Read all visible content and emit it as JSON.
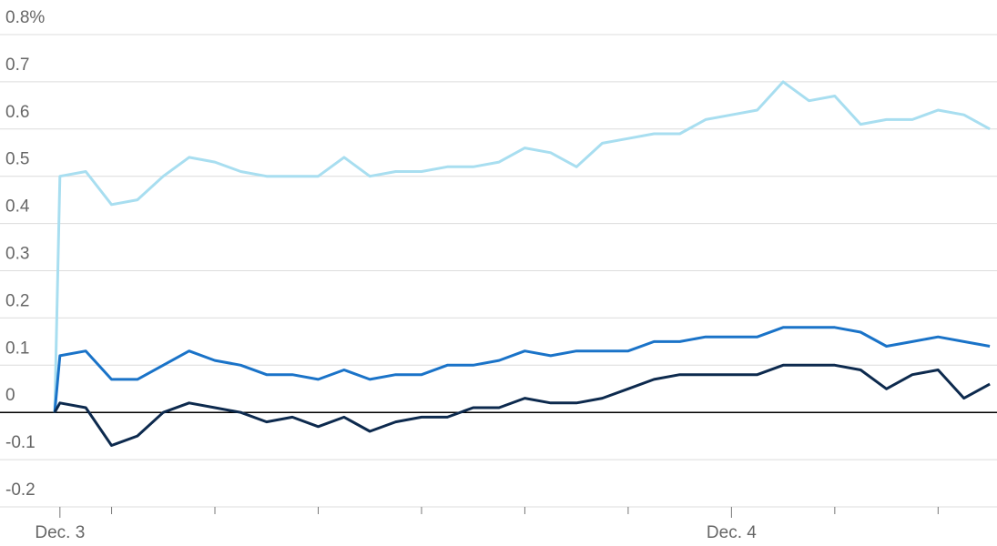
{
  "chart_data": {
    "type": "line",
    "x": [
      -0.05,
      0,
      0.25,
      0.5,
      0.75,
      1,
      1.25,
      1.5,
      1.75,
      2,
      2.25,
      2.5,
      2.75,
      3,
      3.25,
      3.5,
      3.75,
      4,
      4.25,
      4.5,
      4.75,
      5,
      5.25,
      5.5,
      5.75,
      6,
      6.25,
      6.5,
      6.75,
      7,
      7.25,
      7.5,
      7.75,
      8,
      8.25,
      8.5,
      8.75,
      9
    ],
    "series": [
      {
        "color": "#a8def0",
        "values": [
          0,
          0.5,
          0.51,
          0.44,
          0.45,
          0.5,
          0.54,
          0.53,
          0.51,
          0.5,
          0.5,
          0.5,
          0.54,
          0.5,
          0.51,
          0.51,
          0.52,
          0.52,
          0.53,
          0.56,
          0.55,
          0.52,
          0.57,
          0.58,
          0.59,
          0.59,
          0.62,
          0.63,
          0.64,
          0.7,
          0.66,
          0.67,
          0.61,
          0.62,
          0.62,
          0.64,
          0.63,
          0.6
        ]
      },
      {
        "color": "#1a73c8",
        "values": [
          0,
          0.12,
          0.13,
          0.07,
          0.07,
          0.1,
          0.13,
          0.11,
          0.1,
          0.08,
          0.08,
          0.07,
          0.09,
          0.07,
          0.08,
          0.08,
          0.1,
          0.1,
          0.11,
          0.13,
          0.12,
          0.13,
          0.13,
          0.13,
          0.15,
          0.15,
          0.16,
          0.16,
          0.16,
          0.18,
          0.18,
          0.18,
          0.17,
          0.14,
          0.15,
          0.16,
          0.15,
          0.14
        ]
      },
      {
        "color": "#0d2a4e",
        "values": [
          0,
          0.02,
          0.01,
          -0.07,
          -0.05,
          0,
          0.02,
          0.01,
          0,
          -0.02,
          -0.01,
          -0.03,
          -0.01,
          -0.04,
          -0.02,
          -0.01,
          -0.01,
          0.01,
          0.01,
          0.03,
          0.02,
          0.02,
          0.03,
          0.05,
          0.07,
          0.08,
          0.08,
          0.08,
          0.08,
          0.1,
          0.1,
          0.1,
          0.09,
          0.05,
          0.08,
          0.09,
          0.03,
          0.06
        ]
      }
    ],
    "xlim": [
      -0.58,
      9.07
    ],
    "xticks": [
      {
        "value": 0,
        "label": "Dec. 3"
      },
      {
        "value": 6.5,
        "label": "Dec. 4"
      }
    ],
    "xminorticks": [
      0.5,
      1.5,
      2.5,
      3.5,
      4.5,
      5.5,
      7.5,
      8.5
    ],
    "ylim": [
      -0.2,
      0.8
    ],
    "yticks": [
      -0.2,
      -0.1,
      0,
      0.1,
      0.2,
      0.3,
      0.4,
      0.5,
      0.6,
      0.7,
      {
        "value": 0.8,
        "label": "0.8%"
      }
    ],
    "grid": true
  }
}
